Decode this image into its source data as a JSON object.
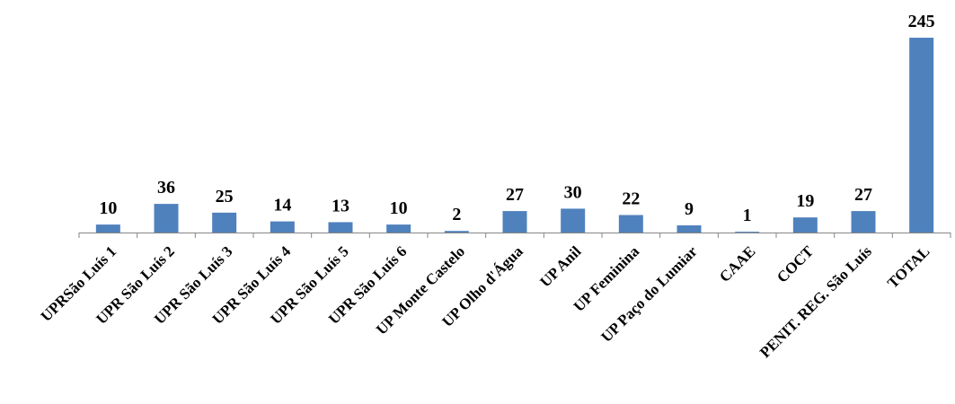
{
  "chart_data": {
    "type": "bar",
    "categories": [
      "UPRSão Luís 1",
      "UPR São Luís 2",
      "UPR São Luís 3",
      "UPR São Luís 4",
      "UPR São Luís 5",
      "UPR São Luís 6",
      "UP Monte Castelo",
      "UP Olho d'Água",
      "UP Anil",
      "UP Feminina",
      "UP Paço do Lumiar",
      "CAAE",
      "COCT",
      "PENIT. REG. São Luís",
      "TOTAL"
    ],
    "values": [
      10,
      36,
      25,
      14,
      13,
      10,
      2,
      27,
      30,
      22,
      9,
      1,
      19,
      27,
      245
    ],
    "title": "",
    "xlabel": "",
    "ylabel": "",
    "ylim": [
      0,
      245
    ],
    "grid": false,
    "legend": "none",
    "bar_color": "#4f81bd",
    "axis_color": "#868686"
  }
}
